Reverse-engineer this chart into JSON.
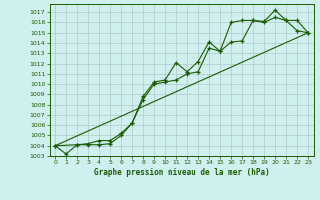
{
  "title": "Graphe pression niveau de la mer (hPa)",
  "background_color": "#cff0ee",
  "grid_color": "#b0c8c8",
  "line_color": "#1a5c00",
  "xlim": [
    -0.5,
    23.5
  ],
  "ylim": [
    1003.0,
    1017.8
  ],
  "yticks": [
    1003,
    1004,
    1005,
    1006,
    1007,
    1008,
    1009,
    1010,
    1011,
    1012,
    1013,
    1014,
    1015,
    1016,
    1017
  ],
  "xticks": [
    0,
    1,
    2,
    3,
    4,
    5,
    6,
    7,
    8,
    9,
    10,
    11,
    12,
    13,
    14,
    15,
    16,
    17,
    18,
    19,
    20,
    21,
    22,
    23
  ],
  "series1_x": [
    0,
    1,
    2,
    3,
    4,
    5,
    6,
    7,
    8,
    9,
    10,
    11,
    12,
    13,
    14,
    15,
    16,
    17,
    18,
    19,
    20,
    21,
    22,
    23
  ],
  "series1_y": [
    1004.0,
    1003.2,
    1004.1,
    1004.1,
    1004.1,
    1004.2,
    1005.0,
    1006.2,
    1008.8,
    1010.2,
    1010.4,
    1012.1,
    1011.2,
    1012.2,
    1014.1,
    1013.2,
    1014.1,
    1014.2,
    1016.2,
    1016.1,
    1017.2,
    1016.2,
    1016.2,
    1015.0
  ],
  "series2_x": [
    0,
    2,
    3,
    4,
    5,
    6,
    7,
    8,
    9,
    10,
    11,
    12,
    13,
    14,
    15,
    16,
    17,
    18,
    19,
    20,
    21,
    22,
    23
  ],
  "series2_y": [
    1004.0,
    1004.1,
    1004.2,
    1004.5,
    1004.5,
    1005.2,
    1006.2,
    1008.5,
    1010.0,
    1010.2,
    1010.4,
    1011.0,
    1011.2,
    1013.5,
    1013.2,
    1016.0,
    1016.2,
    1016.2,
    1016.0,
    1016.5,
    1016.2,
    1015.2,
    1015.0
  ],
  "series3_x": [
    0,
    23
  ],
  "series3_y": [
    1004.0,
    1015.0
  ]
}
